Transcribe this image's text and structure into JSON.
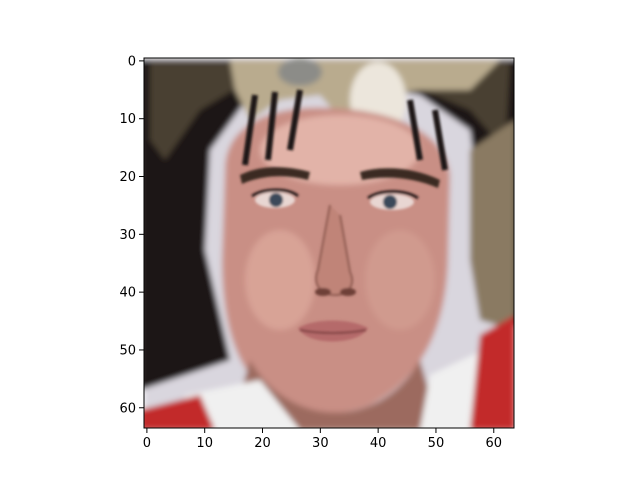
{
  "figure": {
    "background": "#ffffff",
    "frame_color": "#000000"
  },
  "image": {
    "description_icon": "face-portrait-image",
    "pixel_grid": [
      64,
      64
    ],
    "palette": {
      "skin": "#c98f85",
      "skin_light": "#e2b3a8",
      "skin_shadow": "#9c6a5e",
      "hair_dark": "#1d1713",
      "hair_mid": "#4a3f33",
      "hair_light": "#b9ab8e",
      "hair_highlight": "#ece6dc",
      "lips": "#b56a6a",
      "eye": "#3a4a5a",
      "background_light": "#d9d6de",
      "shirt_red": "#c22a2a",
      "shirt_white": "#f0f0f0"
    }
  },
  "chart_data": {
    "type": "image",
    "title": "",
    "xlabel": "",
    "ylabel": "",
    "xlim": [
      -0.5,
      63.5
    ],
    "ylim": [
      63.5,
      -0.5
    ],
    "xticks": [
      0,
      10,
      20,
      30,
      40,
      50,
      60
    ],
    "yticks": [
      0,
      10,
      20,
      30,
      40,
      50,
      60
    ],
    "grid": false,
    "legend": "none"
  }
}
